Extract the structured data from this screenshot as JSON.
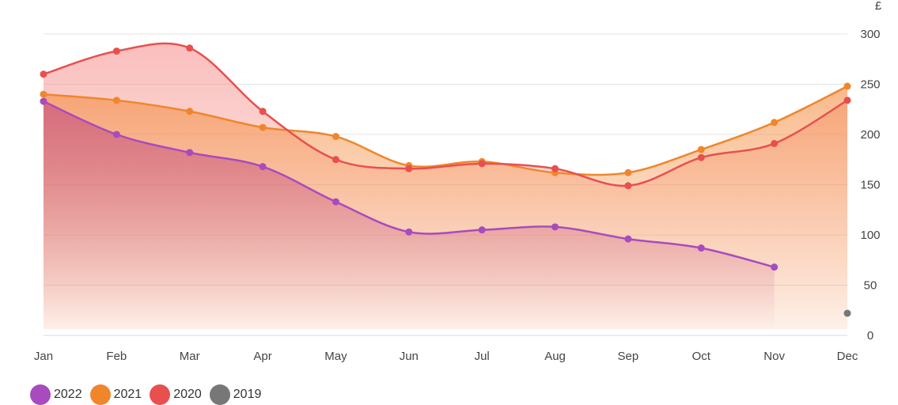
{
  "chart_data": {
    "type": "area",
    "title": "",
    "xlabel": "",
    "ylabel": "£",
    "ylim": [
      0,
      300
    ],
    "yticks": [
      0,
      50,
      100,
      150,
      200,
      250,
      300
    ],
    "categories": [
      "Jan",
      "Feb",
      "Mar",
      "Apr",
      "May",
      "Jun",
      "Jul",
      "Aug",
      "Sep",
      "Oct",
      "Nov",
      "Dec"
    ],
    "legend_position": "bottom-left",
    "grid": true,
    "series": [
      {
        "name": "2022",
        "color": "#a84bbf",
        "fill": "#c9557f",
        "values": [
          233,
          200,
          182,
          168,
          133,
          103,
          105,
          108,
          96,
          87,
          68,
          null
        ]
      },
      {
        "name": "2021",
        "color": "#f0862b",
        "fill": "#f79a5d",
        "values": [
          240,
          234,
          223,
          207,
          198,
          169,
          173,
          162,
          162,
          185,
          212,
          248
        ]
      },
      {
        "name": "2020",
        "color": "#e94f4f",
        "fill": "#f48a8a",
        "values": [
          260,
          283,
          286,
          223,
          175,
          166,
          171,
          166,
          149,
          177,
          191,
          234
        ]
      },
      {
        "name": "2019",
        "color": "#777777",
        "fill": "#999999",
        "values": [
          null,
          null,
          null,
          null,
          null,
          null,
          null,
          null,
          null,
          null,
          null,
          22
        ]
      }
    ]
  }
}
